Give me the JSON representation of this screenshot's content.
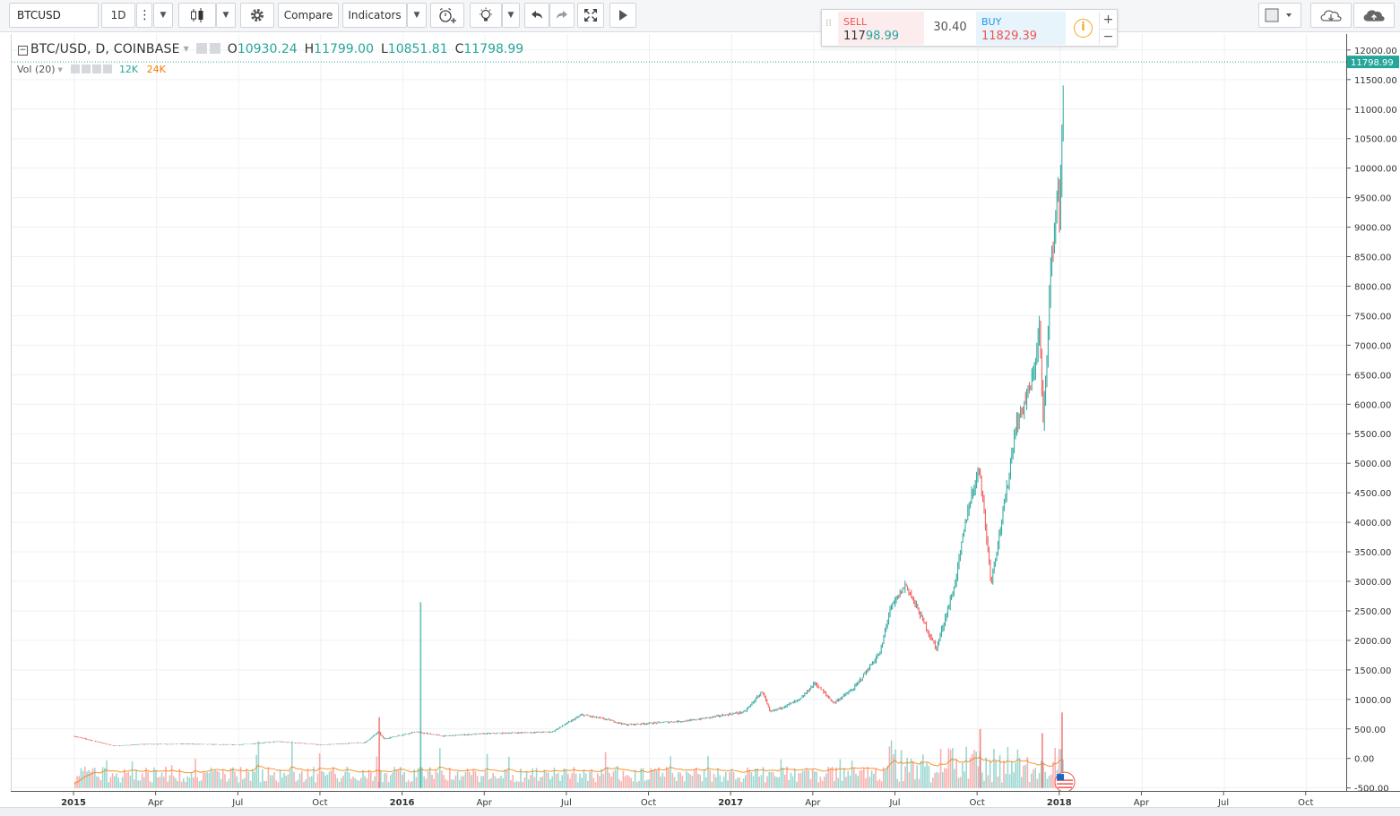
{
  "toolbar": {
    "symbol": "BTCUSD",
    "interval": "1D",
    "compare_label": "Compare",
    "indicators_label": "Indicators"
  },
  "trade": {
    "sell_label": "SELL",
    "sell_price_prefix": "117",
    "sell_price_suffix": "98.99",
    "spread": "30.40",
    "buy_label": "BUY",
    "buy_price": "11829.39",
    "plus": "+",
    "minus": "−",
    "info": "i"
  },
  "legend": {
    "title": "BTC/USD, D, COINBASE",
    "open_label": "O",
    "open": "10930.24",
    "high_label": "H",
    "high": "11799.00",
    "low_label": "L",
    "low": "10851.81",
    "close_label": "C",
    "close": "11798.99",
    "volume_label": "Vol (20)",
    "volume_value_1": "12K",
    "volume_value_2": "24K"
  },
  "colors": {
    "up": "#26a69a",
    "down": "#ef5350",
    "volume_ma": "#f57c00",
    "price_badge": "#26a69a",
    "grid": "#eef0f3"
  },
  "chart_data": {
    "type": "candlestick",
    "symbol": "BTC/USD",
    "interval": "D",
    "exchange": "COINBASE",
    "last_price": 11798.99,
    "y_ticks": [
      -500,
      0,
      500,
      1000,
      1500,
      2000,
      2500,
      3000,
      3500,
      4000,
      4500,
      5000,
      5500,
      6000,
      6500,
      7000,
      7500,
      8000,
      8500,
      9000,
      9500,
      10000,
      10500,
      11000,
      11500,
      12000
    ],
    "y_tick_labels": [
      "-500.00",
      "0.00",
      "500.00",
      "1000.00",
      "1500.00",
      "2000.00",
      "2500.00",
      "3000.00",
      "3500.00",
      "4000.00",
      "4500.00",
      "5000.00",
      "5500.00",
      "6000.00",
      "6500.00",
      "7000.00",
      "7500.00",
      "8000.00",
      "8500.00",
      "9000.00",
      "9500.00",
      "10000.00",
      "10500.00",
      "11000.00",
      "11500.00",
      "12000.00"
    ],
    "ylim": [
      -520,
      12180
    ],
    "x_tick_labels": [
      "2015",
      "Apr",
      "Jul",
      "Oct",
      "2016",
      "Apr",
      "Jul",
      "Oct",
      "2017",
      "Apr",
      "Jul",
      "Oct",
      "2018",
      "Apr",
      "Jul",
      "Oct"
    ],
    "x_tick_months": [
      0,
      3,
      6,
      9,
      12,
      15,
      18,
      21,
      24,
      27,
      30,
      33,
      36,
      39,
      42,
      45
    ],
    "x_start": "2014-12",
    "price_path": [
      {
        "date": "2014-12-01",
        "price": 375
      },
      {
        "date": "2015-01-15",
        "price": 210
      },
      {
        "date": "2015-02-15",
        "price": 240
      },
      {
        "date": "2015-04-01",
        "price": 245
      },
      {
        "date": "2015-06-01",
        "price": 230
      },
      {
        "date": "2015-07-15",
        "price": 285
      },
      {
        "date": "2015-09-01",
        "price": 230
      },
      {
        "date": "2015-10-20",
        "price": 270
      },
      {
        "date": "2015-11-04",
        "price": 450
      },
      {
        "date": "2015-11-10",
        "price": 330
      },
      {
        "date": "2015-12-15",
        "price": 450
      },
      {
        "date": "2016-01-15",
        "price": 380
      },
      {
        "date": "2016-03-01",
        "price": 420
      },
      {
        "date": "2016-05-15",
        "price": 450
      },
      {
        "date": "2016-06-17",
        "price": 740
      },
      {
        "date": "2016-07-15",
        "price": 660
      },
      {
        "date": "2016-08-05",
        "price": 570
      },
      {
        "date": "2016-10-15",
        "price": 640
      },
      {
        "date": "2016-12-15",
        "price": 790
      },
      {
        "date": "2017-01-04",
        "price": 1140
      },
      {
        "date": "2017-01-12",
        "price": 780
      },
      {
        "date": "2017-02-15",
        "price": 1000
      },
      {
        "date": "2017-03-03",
        "price": 1280
      },
      {
        "date": "2017-03-24",
        "price": 940
      },
      {
        "date": "2017-04-15",
        "price": 1180
      },
      {
        "date": "2017-05-15",
        "price": 1800
      },
      {
        "date": "2017-05-25",
        "price": 2500
      },
      {
        "date": "2017-06-12",
        "price": 2950
      },
      {
        "date": "2017-07-16",
        "price": 1860
      },
      {
        "date": "2017-08-05",
        "price": 2900
      },
      {
        "date": "2017-08-20",
        "price": 4200
      },
      {
        "date": "2017-09-02",
        "price": 4950
      },
      {
        "date": "2017-09-15",
        "price": 3000
      },
      {
        "date": "2017-10-01",
        "price": 4400
      },
      {
        "date": "2017-10-12",
        "price": 5600
      },
      {
        "date": "2017-10-31",
        "price": 6400
      },
      {
        "date": "2017-11-08",
        "price": 7300
      },
      {
        "date": "2017-11-12",
        "price": 5600
      },
      {
        "date": "2017-11-20",
        "price": 8200
      },
      {
        "date": "2017-11-29",
        "price": 9800
      },
      {
        "date": "2017-11-30",
        "price": 9000
      },
      {
        "date": "2017-12-05",
        "price": 11798.99
      }
    ],
    "volume_spikes": [
      {
        "date": "2015-11-04",
        "value": 700
      },
      {
        "date": "2015-12-20",
        "value": 2650
      },
      {
        "date": "2017-09-02",
        "value": 500
      },
      {
        "date": "2017-11-10",
        "value": 430
      },
      {
        "date": "2017-12-02",
        "value": 780
      }
    ],
    "legend_placement": "top-left"
  }
}
